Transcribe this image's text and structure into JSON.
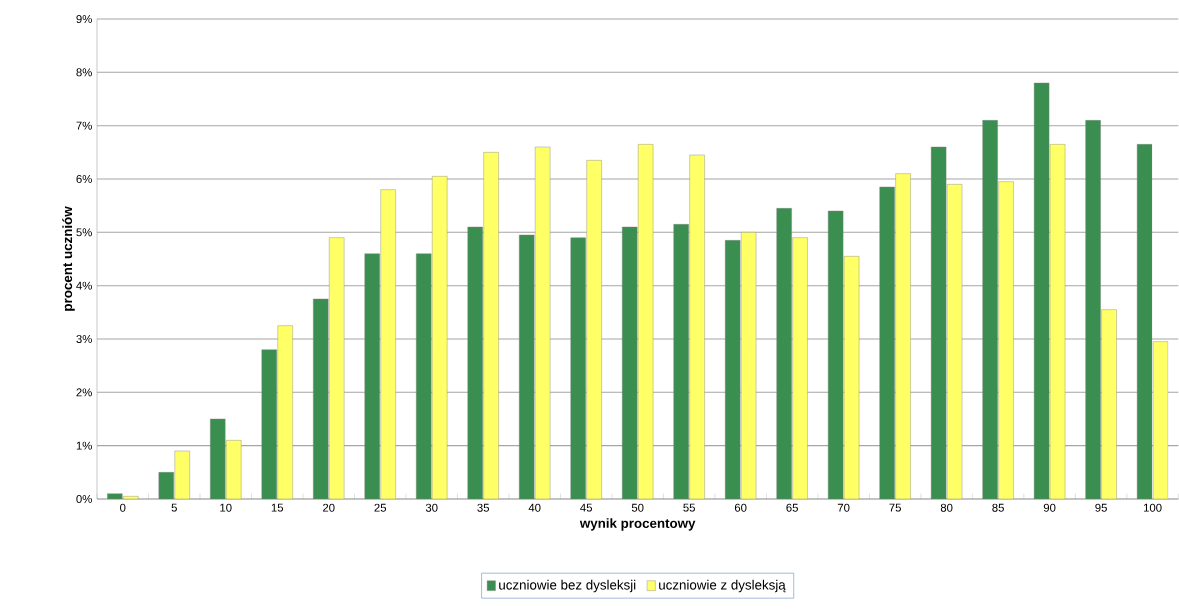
{
  "chart_data": {
    "type": "bar",
    "xlabel": "wynik procentowy",
    "ylabel": "procent  uczniów",
    "categories": [
      "0",
      "5",
      "10",
      "15",
      "20",
      "25",
      "30",
      "35",
      "40",
      "45",
      "50",
      "55",
      "60",
      "65",
      "70",
      "75",
      "80",
      "85",
      "90",
      "95",
      "100"
    ],
    "series": [
      {
        "name": "uczniowie bez dysleksji",
        "color": "#3a8f50",
        "values": [
          0.1,
          0.5,
          1.5,
          2.8,
          3.75,
          4.6,
          4.6,
          5.1,
          4.95,
          4.9,
          5.1,
          5.15,
          4.85,
          5.45,
          5.4,
          5.85,
          6.6,
          7.1,
          7.8,
          7.1,
          6.65
        ]
      },
      {
        "name": "uczniowie z dysleksją",
        "color": "#ffff66",
        "values": [
          0.05,
          0.9,
          1.1,
          3.25,
          4.9,
          5.8,
          6.05,
          6.5,
          6.6,
          6.35,
          6.65,
          6.45,
          5.0,
          4.9,
          4.55,
          6.1,
          5.9,
          5.95,
          6.65,
          3.55,
          2.95
        ]
      }
    ],
    "ylim": [
      0,
      9
    ],
    "yticks": [
      {
        "value": 0,
        "label": "0%"
      },
      {
        "value": 1,
        "label": "1%"
      },
      {
        "value": 2,
        "label": "2%"
      },
      {
        "value": 3,
        "label": "3%"
      },
      {
        "value": 4,
        "label": "4%"
      },
      {
        "value": 5,
        "label": "5%"
      },
      {
        "value": 6,
        "label": "6%"
      },
      {
        "value": 7,
        "label": "7%"
      },
      {
        "value": 8,
        "label": "8%"
      },
      {
        "value": 9,
        "label": "9%"
      }
    ],
    "grid": "y",
    "legend": "bottom"
  }
}
